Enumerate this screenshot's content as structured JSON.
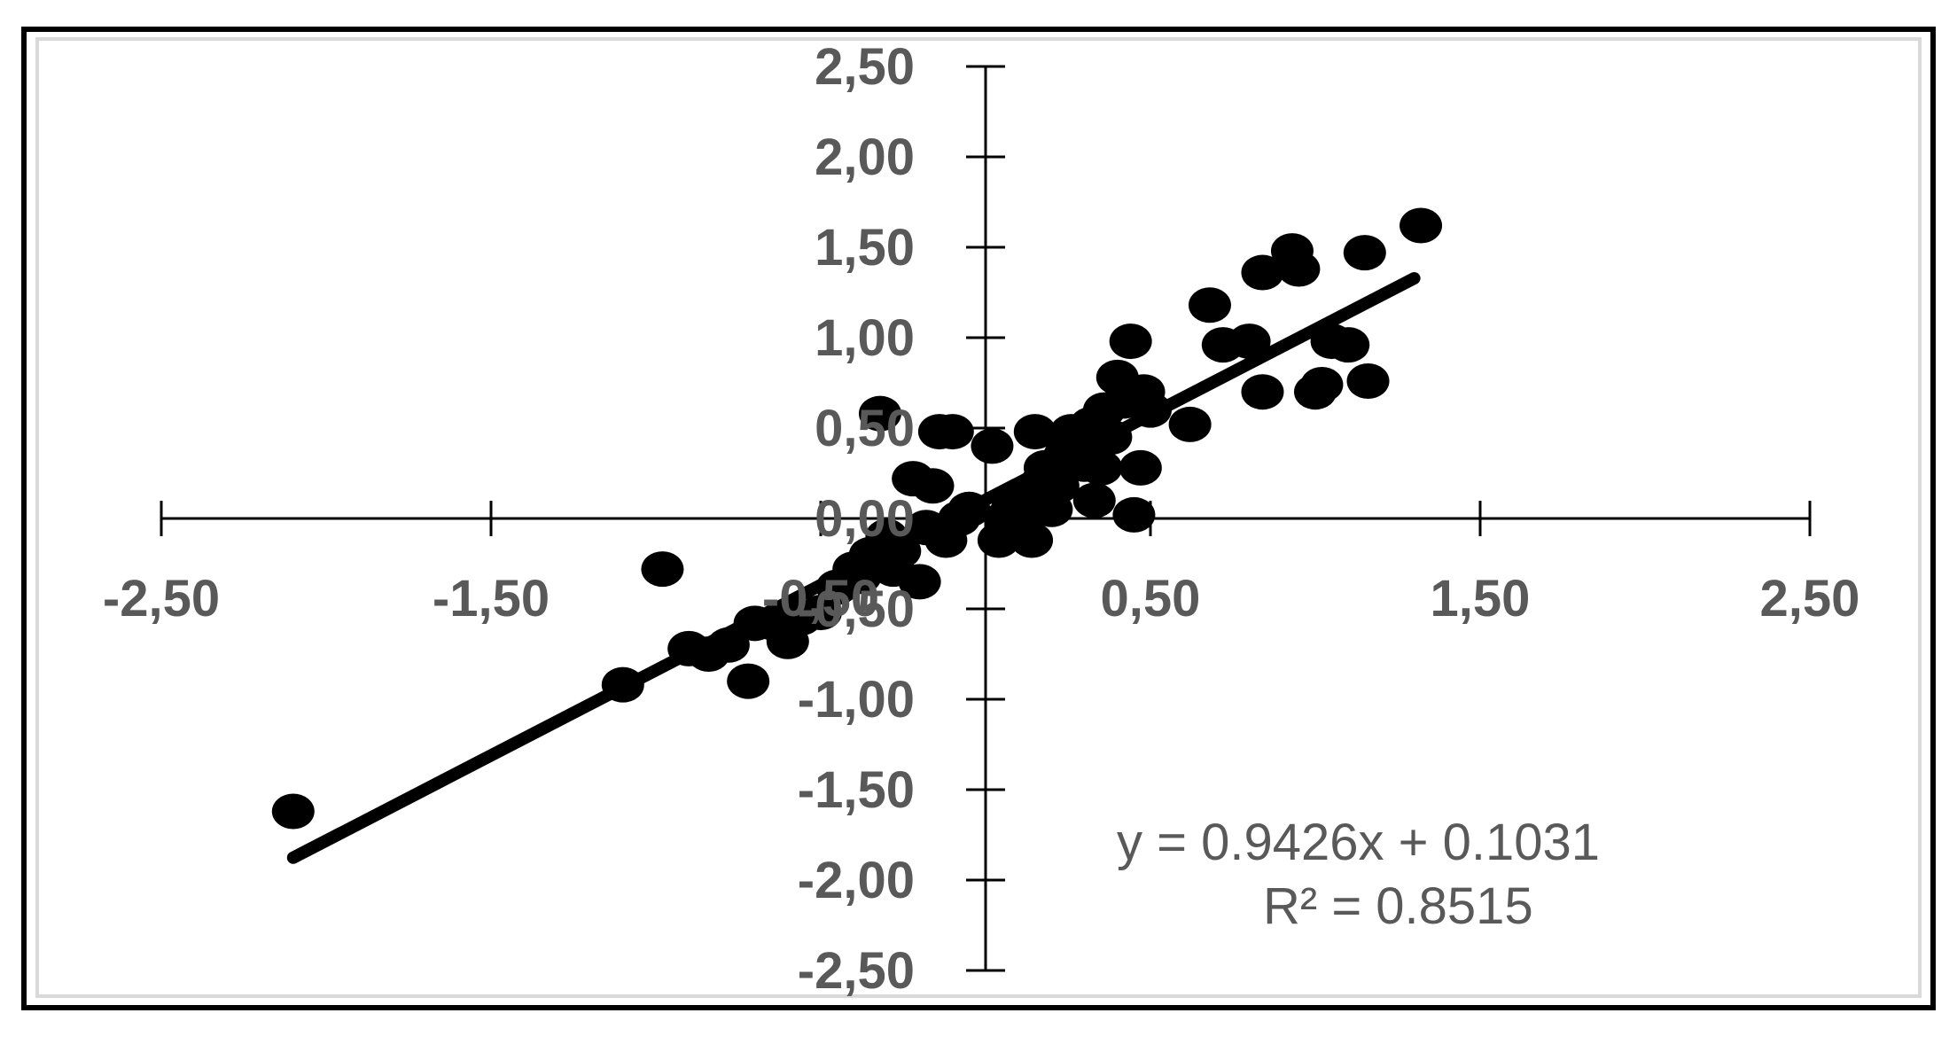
{
  "chart_data": {
    "type": "scatter",
    "title": "",
    "xlabel": "",
    "ylabel": "",
    "xlim": [
      -2.5,
      2.5
    ],
    "ylim": [
      -2.5,
      2.5
    ],
    "grid": false,
    "x_tick_labels": [
      "-2,50",
      "-1,50",
      "-0,50",
      "0,50",
      "1,50",
      "2,50"
    ],
    "x_tick_values": [
      -2.5,
      -1.5,
      -0.5,
      0.5,
      1.5,
      2.5
    ],
    "y_tick_labels": [
      "2,50",
      "2,00",
      "1,50",
      "1,00",
      "0,50",
      "0,00",
      "-0,50",
      "-1,00",
      "-1,50",
      "-2,00",
      "-2,50"
    ],
    "y_tick_values": [
      2.5,
      2.0,
      1.5,
      1.0,
      0.5,
      0.0,
      -0.5,
      -1.0,
      -1.5,
      -2.0,
      -2.5
    ],
    "colors": {
      "points": "#000000",
      "trendline": "#000000",
      "axis": "#000000",
      "labels": "#595959"
    },
    "series": [
      {
        "points": [
          {
            "x": -2.1,
            "y": -1.62
          },
          {
            "x": -1.1,
            "y": -0.92
          },
          {
            "x": -0.98,
            "y": -0.28
          },
          {
            "x": -0.9,
            "y": -0.72
          },
          {
            "x": -0.84,
            "y": -0.75
          },
          {
            "x": -0.78,
            "y": -0.7
          },
          {
            "x": -0.72,
            "y": -0.9
          },
          {
            "x": -0.7,
            "y": -0.58
          },
          {
            "x": -0.64,
            "y": -0.58
          },
          {
            "x": -0.6,
            "y": -0.68
          },
          {
            "x": -0.56,
            "y": -0.55
          },
          {
            "x": -0.5,
            "y": -0.52
          },
          {
            "x": -0.45,
            "y": -0.38
          },
          {
            "x": -0.4,
            "y": -0.28
          },
          {
            "x": -0.38,
            "y": -0.32
          },
          {
            "x": -0.35,
            "y": -0.2
          },
          {
            "x": -0.32,
            "y": 0.58
          },
          {
            "x": -0.3,
            "y": -0.1
          },
          {
            "x": -0.28,
            "y": -0.28
          },
          {
            "x": -0.26,
            "y": -0.18
          },
          {
            "x": -0.22,
            "y": 0.22
          },
          {
            "x": -0.2,
            "y": -0.35
          },
          {
            "x": -0.18,
            "y": -0.05
          },
          {
            "x": -0.16,
            "y": 0.18
          },
          {
            "x": -0.14,
            "y": 0.48
          },
          {
            "x": -0.12,
            "y": -0.12
          },
          {
            "x": -0.1,
            "y": 0.48
          },
          {
            "x": -0.08,
            "y": 0.0
          },
          {
            "x": -0.05,
            "y": 0.05
          },
          {
            "x": 0.02,
            "y": 0.4
          },
          {
            "x": 0.04,
            "y": -0.12
          },
          {
            "x": 0.06,
            "y": 0.0
          },
          {
            "x": 0.08,
            "y": 0.05
          },
          {
            "x": 0.1,
            "y": -0.05
          },
          {
            "x": 0.12,
            "y": 0.1
          },
          {
            "x": 0.14,
            "y": -0.12
          },
          {
            "x": 0.15,
            "y": 0.48
          },
          {
            "x": 0.17,
            "y": 0.2
          },
          {
            "x": 0.18,
            "y": 0.28
          },
          {
            "x": 0.2,
            "y": 0.05
          },
          {
            "x": 0.22,
            "y": 0.18
          },
          {
            "x": 0.24,
            "y": 0.35
          },
          {
            "x": 0.26,
            "y": 0.48
          },
          {
            "x": 0.28,
            "y": 0.42
          },
          {
            "x": 0.3,
            "y": 0.3
          },
          {
            "x": 0.32,
            "y": 0.52
          },
          {
            "x": 0.33,
            "y": 0.1
          },
          {
            "x": 0.35,
            "y": 0.28
          },
          {
            "x": 0.36,
            "y": 0.6
          },
          {
            "x": 0.38,
            "y": 0.45
          },
          {
            "x": 0.4,
            "y": 0.78
          },
          {
            "x": 0.42,
            "y": 0.65
          },
          {
            "x": 0.44,
            "y": 0.98
          },
          {
            "x": 0.45,
            "y": 0.02
          },
          {
            "x": 0.47,
            "y": 0.28
          },
          {
            "x": 0.48,
            "y": 0.7
          },
          {
            "x": 0.5,
            "y": 0.6
          },
          {
            "x": 0.62,
            "y": 0.52
          },
          {
            "x": 0.68,
            "y": 1.18
          },
          {
            "x": 0.72,
            "y": 0.96
          },
          {
            "x": 0.8,
            "y": 0.98
          },
          {
            "x": 0.84,
            "y": 1.36
          },
          {
            "x": 0.84,
            "y": 0.7
          },
          {
            "x": 0.93,
            "y": 1.48
          },
          {
            "x": 0.95,
            "y": 1.38
          },
          {
            "x": 1.0,
            "y": 0.7
          },
          {
            "x": 1.02,
            "y": 0.74
          },
          {
            "x": 1.05,
            "y": 0.98
          },
          {
            "x": 1.1,
            "y": 0.96
          },
          {
            "x": 1.15,
            "y": 1.47
          },
          {
            "x": 1.16,
            "y": 0.76
          },
          {
            "x": 1.32,
            "y": 1.62
          }
        ]
      }
    ],
    "trendline": {
      "slope": 0.9426,
      "intercept": 0.1031,
      "x_range": [
        -2.1,
        1.3
      ],
      "equation_label": "y = 0.9426x + 0.1031",
      "r2_label": "R² = 0.8515"
    }
  }
}
